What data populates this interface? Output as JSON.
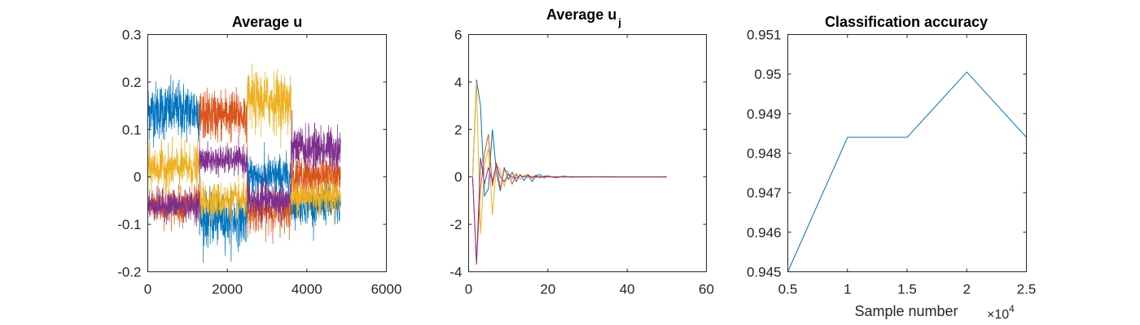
{
  "chart_data": [
    {
      "type": "line",
      "title": "Average u",
      "xlim": [
        0,
        6000
      ],
      "ylim": [
        -0.2,
        0.3
      ],
      "xticks": [
        "0",
        "2000",
        "4000",
        "6000"
      ],
      "yticks": [
        "-0.2",
        "-0.1",
        "0",
        "0.1",
        "0.2",
        "0.3"
      ],
      "grid": false,
      "series": [
        {
          "color": "#0072BD",
          "segments": [
            {
              "x": [
                0,
                1300
              ],
              "mean": 0.14,
              "spread": 0.04
            },
            {
              "x": [
                1300,
                2500
              ],
              "mean": -0.09,
              "spread": 0.035
            },
            {
              "x": [
                2500,
                3600
              ],
              "mean": 0.0,
              "spread": 0.03
            },
            {
              "x": [
                3600,
                4850
              ],
              "mean": -0.06,
              "spread": 0.025
            }
          ]
        },
        {
          "color": "#D95319",
          "segments": [
            {
              "x": [
                0,
                1300
              ],
              "mean": -0.06,
              "spread": 0.025
            },
            {
              "x": [
                1300,
                2500
              ],
              "mean": 0.13,
              "spread": 0.035
            },
            {
              "x": [
                2500,
                3600
              ],
              "mean": -0.07,
              "spread": 0.03
            },
            {
              "x": [
                3600,
                4850
              ],
              "mean": 0.0,
              "spread": 0.03
            }
          ]
        },
        {
          "color": "#EDB120",
          "segments": [
            {
              "x": [
                0,
                1300
              ],
              "mean": 0.02,
              "spread": 0.03
            },
            {
              "x": [
                1300,
                2500
              ],
              "mean": -0.05,
              "spread": 0.025
            },
            {
              "x": [
                2500,
                3600
              ],
              "mean": 0.16,
              "spread": 0.04
            },
            {
              "x": [
                3600,
                4850
              ],
              "mean": -0.04,
              "spread": 0.025
            }
          ]
        },
        {
          "color": "#7E2F8E",
          "segments": [
            {
              "x": [
                0,
                1300
              ],
              "mean": -0.06,
              "spread": 0.02
            },
            {
              "x": [
                1300,
                2500
              ],
              "mean": 0.035,
              "spread": 0.02
            },
            {
              "x": [
                2500,
                3600
              ],
              "mean": -0.05,
              "spread": 0.025
            },
            {
              "x": [
                3600,
                4850
              ],
              "mean": 0.06,
              "spread": 0.03
            }
          ]
        }
      ]
    },
    {
      "type": "line",
      "title": "Average u",
      "title_subscript": "j",
      "xlim": [
        0,
        60
      ],
      "ylim": [
        -4,
        6
      ],
      "xticks": [
        "0",
        "20",
        "40",
        "60"
      ],
      "yticks": [
        "-4",
        "-2",
        "0",
        "2",
        "4",
        "6"
      ],
      "grid": false,
      "series": [
        {
          "color": "#0072BD",
          "x": [
            1,
            2,
            3,
            4,
            5,
            6,
            7,
            8,
            9,
            10,
            11,
            12,
            13,
            14,
            15,
            16,
            17,
            18,
            19,
            20,
            22,
            24,
            26,
            28,
            30,
            35,
            40,
            45,
            50
          ],
          "y": [
            0,
            4.1,
            3.0,
            -0.8,
            -0.5,
            2.0,
            0.2,
            -0.6,
            0.4,
            -0.1,
            0.2,
            -0.2,
            0.1,
            -0.15,
            0.08,
            -0.2,
            0.05,
            0.1,
            -0.05,
            0.03,
            -0.04,
            0.03,
            -0.02,
            0.01,
            0.0,
            0.01,
            -0.01,
            0.0,
            0.0
          ]
        },
        {
          "color": "#D95319",
          "x": [
            1,
            2,
            3,
            4,
            5,
            6,
            7,
            8,
            9,
            10,
            11,
            12,
            13,
            14,
            15,
            16,
            17,
            18,
            19,
            20,
            22,
            24,
            26,
            28,
            30,
            35,
            40,
            45,
            50
          ],
          "y": [
            0,
            -3.6,
            -0.5,
            1.0,
            1.8,
            -0.4,
            0.6,
            -0.5,
            0.3,
            0.2,
            -0.3,
            0.1,
            -0.1,
            0.05,
            0.1,
            -0.05,
            0.08,
            -0.04,
            0.03,
            0.05,
            -0.03,
            0.02,
            0.01,
            -0.01,
            0.01,
            0.0,
            0.0,
            0.0,
            0.0
          ]
        },
        {
          "color": "#EDB120",
          "x": [
            1,
            2,
            3,
            4,
            5,
            6,
            7,
            8,
            9,
            10,
            11,
            12,
            13,
            14,
            15,
            16,
            17,
            18,
            19,
            20,
            22,
            24,
            26,
            28,
            30,
            35,
            40,
            45,
            50
          ],
          "y": [
            0,
            4.0,
            -2.4,
            0.5,
            1.2,
            -1.6,
            0.5,
            0.3,
            -0.4,
            0.2,
            -0.1,
            0.15,
            -0.1,
            0.05,
            -0.05,
            0.04,
            -0.03,
            0.02,
            -0.02,
            0.01,
            0.01,
            -0.01,
            0.0,
            0.0,
            0.0,
            0.0,
            0.0,
            0.0,
            0.0
          ]
        },
        {
          "color": "#7E2F8E",
          "x": [
            1,
            2,
            3,
            4,
            5,
            6,
            7,
            8,
            9,
            10,
            11,
            12,
            13,
            14,
            15,
            16,
            17,
            18,
            19,
            20,
            22,
            24,
            26,
            28,
            30,
            35,
            40,
            45,
            50
          ],
          "y": [
            0,
            -3.7,
            0.8,
            -0.3,
            0.4,
            -0.2,
            0.5,
            0.0,
            -0.2,
            0.1,
            0.0,
            -0.05,
            0.05,
            0.0,
            0.03,
            -0.02,
            0.01,
            0.0,
            0.01,
            0.0,
            0.0,
            0.0,
            0.0,
            0.0,
            0.0,
            0.0,
            0.0,
            0.0,
            0.0
          ]
        }
      ]
    },
    {
      "type": "line",
      "title": "Classification accuracy",
      "xlabel": "Sample number",
      "x_exponent_base": "×10",
      "x_exponent_power": "4",
      "xlim": [
        0.5,
        2.5
      ],
      "ylim": [
        0.945,
        0.951
      ],
      "xticks": [
        "0.5",
        "1",
        "1.5",
        "2",
        "2.5"
      ],
      "yticks": [
        "0.945",
        "0.946",
        "0.947",
        "0.948",
        "0.949",
        "0.95",
        "0.951"
      ],
      "grid": false,
      "series": [
        {
          "color": "#0072BD",
          "x": [
            0.5,
            1.0,
            1.5,
            2.0,
            2.5
          ],
          "y": [
            0.945,
            0.9484,
            0.9484,
            0.95005,
            0.9484
          ]
        }
      ]
    }
  ]
}
